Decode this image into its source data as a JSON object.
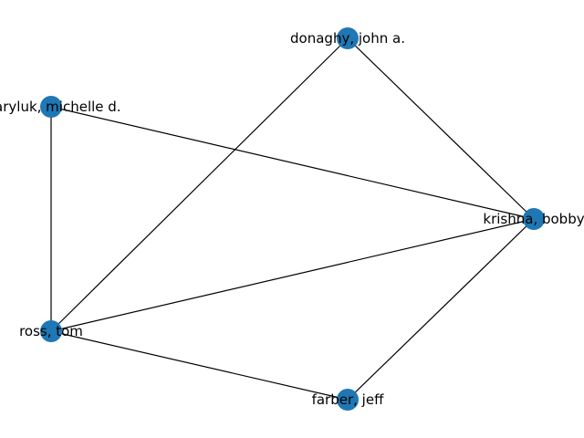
{
  "graph": {
    "node_color": "#1f77b4",
    "edge_color": "#000000",
    "nodes": [
      {
        "id": "donaghy",
        "label": "donaghy, john a."
      },
      {
        "id": "maryluk",
        "label": "maryluk, michelle d."
      },
      {
        "id": "krishna",
        "label": "krishna, bobby"
      },
      {
        "id": "ross",
        "label": "ross, tom"
      },
      {
        "id": "farber",
        "label": "farber, jeff"
      }
    ],
    "edges": [
      [
        "donaghy",
        "krishna"
      ],
      [
        "donaghy",
        "ross"
      ],
      [
        "maryluk",
        "krishna"
      ],
      [
        "maryluk",
        "ross"
      ],
      [
        "ross",
        "krishna"
      ],
      [
        "ross",
        "farber"
      ],
      [
        "farber",
        "krishna"
      ]
    ]
  }
}
